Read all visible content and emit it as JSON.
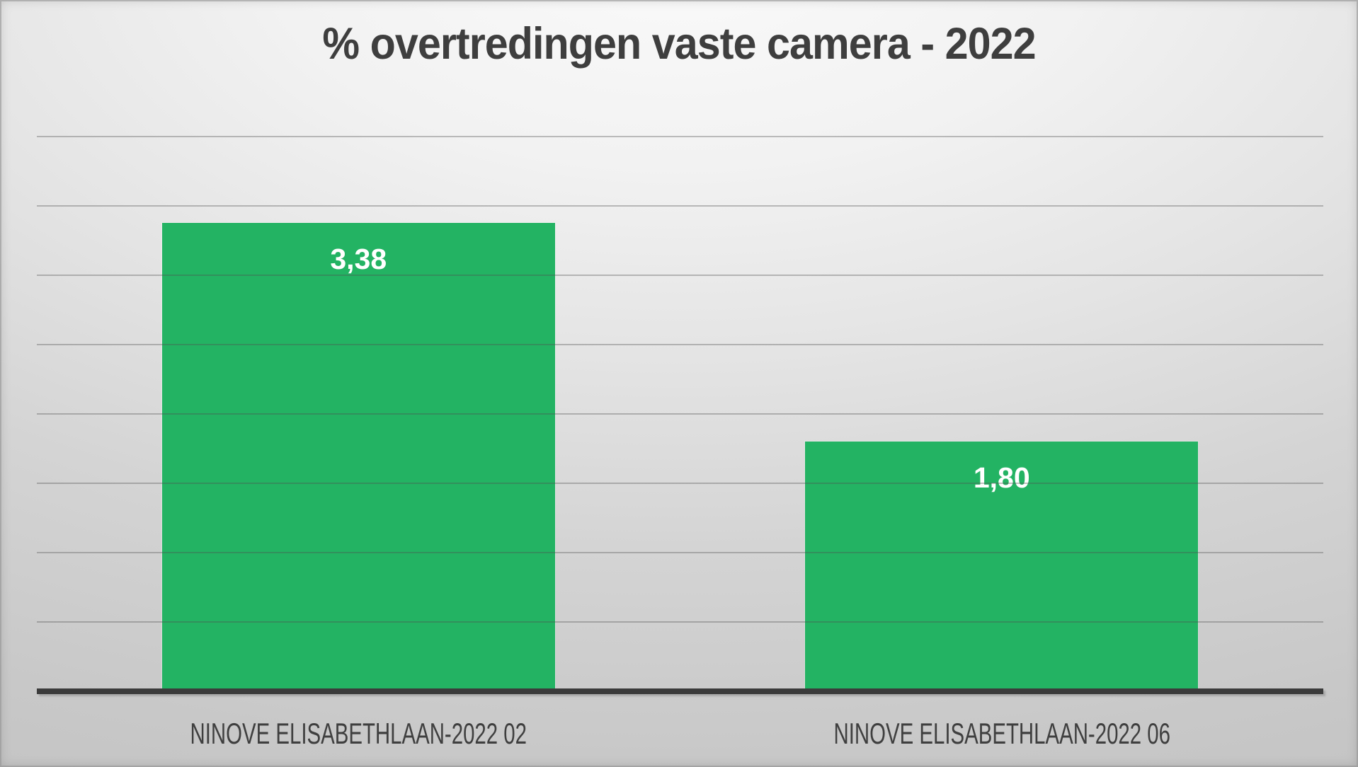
{
  "chart_data": {
    "type": "bar",
    "title": "% overtredingen vaste camera - 2022",
    "categories": [
      "NINOVE ELISABETHLAAN-2022 02",
      "NINOVE ELISABETHLAAN-2022 06"
    ],
    "values": [
      3.38,
      1.8
    ],
    "value_labels": [
      "3,38",
      "1,80"
    ],
    "xlabel": "",
    "ylabel": "",
    "ylim": [
      0,
      4
    ],
    "gridline_step": 0.5,
    "grid": true,
    "legend": false,
    "y_tick_labels_visible": false,
    "colors": {
      "bar": "#23b363",
      "value_label": "#ffffff",
      "title": "#3e3e3e",
      "category_label": "#3f3f3f",
      "axis_line": "#3b3b3b",
      "gridline": "rgba(80,80,80,0.35)"
    }
  }
}
